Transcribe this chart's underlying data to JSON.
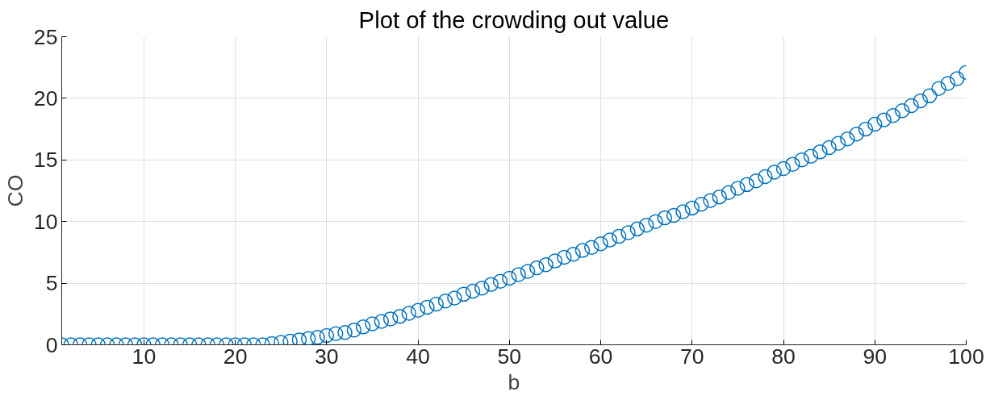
{
  "chart_data": {
    "type": "scatter",
    "title": "Plot of the crowding out value",
    "xlabel": "b",
    "ylabel": "CO",
    "x": [
      1,
      2,
      3,
      4,
      5,
      6,
      7,
      8,
      9,
      10,
      11,
      12,
      13,
      14,
      15,
      16,
      17,
      18,
      19,
      20,
      21,
      22,
      23,
      24,
      25,
      26,
      27,
      28,
      29,
      30,
      31,
      32,
      33,
      34,
      35,
      36,
      37,
      38,
      39,
      40,
      41,
      42,
      43,
      44,
      45,
      46,
      47,
      48,
      49,
      50,
      51,
      52,
      53,
      54,
      55,
      56,
      57,
      58,
      59,
      60,
      61,
      62,
      63,
      64,
      65,
      66,
      67,
      68,
      69,
      70,
      71,
      72,
      73,
      74,
      75,
      76,
      77,
      78,
      79,
      80,
      81,
      82,
      83,
      84,
      85,
      86,
      87,
      88,
      89,
      90,
      91,
      92,
      93,
      94,
      95,
      96,
      97,
      98,
      99,
      100
    ],
    "series": [
      {
        "color": "#0072bd",
        "values": [
          0,
          0,
          0,
          0,
          0,
          0,
          0,
          0,
          0,
          0,
          0,
          0,
          0,
          0,
          0,
          0,
          0,
          0,
          0,
          0,
          0,
          0,
          0,
          0.1,
          0.2,
          0.3,
          0.4,
          0.5,
          0.6,
          0.75,
          0.9,
          1.0,
          1.2,
          1.45,
          1.7,
          1.9,
          2.1,
          2.3,
          2.55,
          2.8,
          3.05,
          3.3,
          3.55,
          3.8,
          4.1,
          4.35,
          4.6,
          4.9,
          5.15,
          5.4,
          5.7,
          5.95,
          6.25,
          6.5,
          6.8,
          7.1,
          7.35,
          7.65,
          7.9,
          8.2,
          8.5,
          8.8,
          9.1,
          9.4,
          9.7,
          10.0,
          10.3,
          10.5,
          10.8,
          11.1,
          11.4,
          11.7,
          12.0,
          12.35,
          12.7,
          13.0,
          13.3,
          13.65,
          14.0,
          14.3,
          14.65,
          15.0,
          15.3,
          15.65,
          16.0,
          16.35,
          16.7,
          17.1,
          17.5,
          17.9,
          18.25,
          18.6,
          19.0,
          19.4,
          19.8,
          20.2,
          20.8,
          21.2,
          21.6,
          22.1
        ]
      }
    ],
    "xlim": [
      1,
      100
    ],
    "ylim": [
      0,
      25
    ],
    "xticks": [
      10,
      20,
      30,
      40,
      50,
      60,
      70,
      80,
      90,
      100
    ],
    "yticks": [
      0,
      5,
      10,
      15,
      20,
      25
    ],
    "grid": true,
    "marker": "circle"
  }
}
